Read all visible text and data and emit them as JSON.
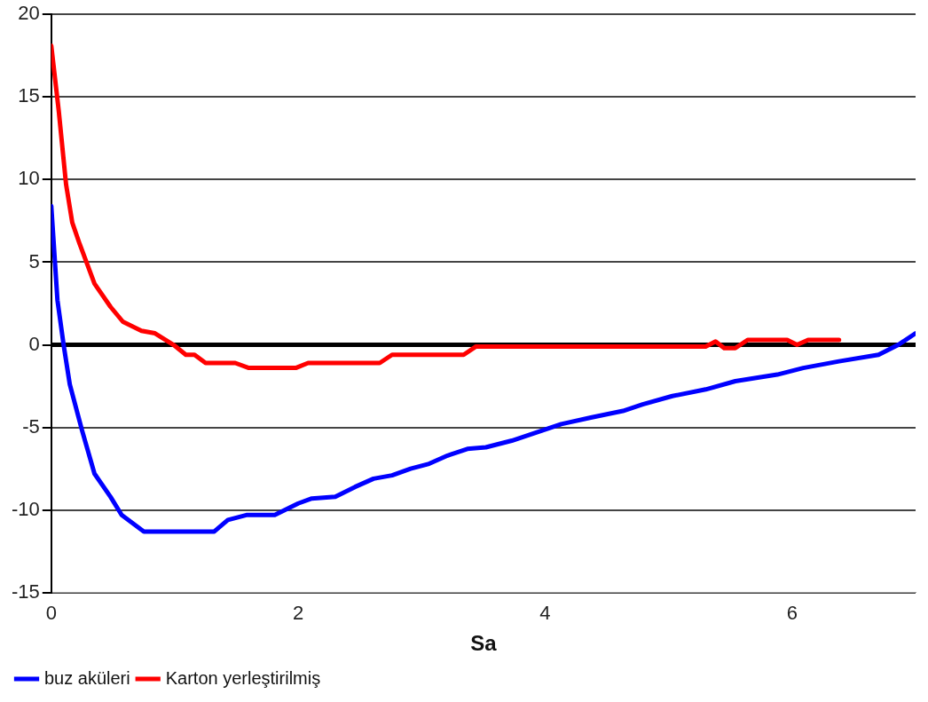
{
  "chart_data": {
    "type": "line",
    "xlabel": "Sa",
    "xlim": [
      0,
      7
    ],
    "xticks": [
      0,
      2,
      4,
      6
    ],
    "ylim": [
      -15,
      20
    ],
    "yticks": [
      -15,
      -10,
      -5,
      0,
      5,
      10,
      15,
      20
    ],
    "grid": "y",
    "legend": "bottom left",
    "marker": "none",
    "line_style": "solid",
    "ref_lines": [
      {
        "axis": "y",
        "value": 0,
        "color": "#000000"
      }
    ],
    "series": [
      {
        "name": "buz aküleri",
        "color": "#0000ff",
        "x": [
          0,
          0.05,
          0.1,
          0.15,
          0.25,
          0.35,
          0.48,
          0.57,
          0.75,
          1.32,
          1.43,
          1.58,
          1.81,
          2.0,
          2.11,
          2.3,
          2.46,
          2.61,
          2.76,
          2.91,
          3.06,
          3.21,
          3.37,
          3.52,
          3.73,
          3.97,
          4.13,
          4.37,
          4.63,
          4.79,
          5.03,
          5.3,
          5.54,
          5.88,
          6.09,
          6.38,
          6.7,
          6.86,
          7.0
        ],
        "values": [
          8.4,
          2.7,
          0,
          -2.4,
          -5.2,
          -7.8,
          -9.2,
          -10.3,
          -11.3,
          -11.3,
          -10.6,
          -10.3,
          -10.3,
          -9.6,
          -9.3,
          -9.2,
          -8.6,
          -8.1,
          -7.9,
          -7.5,
          -7.2,
          -6.7,
          -6.3,
          -6.2,
          -5.8,
          -5.2,
          -4.8,
          -4.4,
          -4.0,
          -3.6,
          -3.1,
          -2.7,
          -2.2,
          -1.8,
          -1.4,
          -1.0,
          -0.6,
          0,
          0.7
        ]
      },
      {
        "name": "Karton yerleştirilmiş",
        "color": "#ff0000",
        "x": [
          0,
          0.06,
          0.12,
          0.17,
          0.23,
          0.35,
          0.48,
          0.58,
          0.73,
          0.84,
          0.99,
          1.09,
          1.16,
          1.25,
          1.49,
          1.6,
          1.98,
          2.08,
          2.66,
          2.76,
          3.34,
          3.44,
          5.3,
          5.38,
          5.45,
          5.54,
          5.64,
          5.96,
          6.04,
          6.13,
          6.38
        ],
        "values": [
          18.1,
          14.2,
          9.7,
          7.4,
          6.1,
          3.7,
          2.3,
          1.4,
          0.85,
          0.7,
          0,
          -0.6,
          -0.6,
          -1.1,
          -1.1,
          -1.4,
          -1.4,
          -1.1,
          -1.1,
          -0.6,
          -0.6,
          -0.1,
          -0.1,
          0.2,
          -0.2,
          -0.2,
          0.3,
          0.3,
          0,
          0.3,
          0.3
        ]
      }
    ]
  }
}
